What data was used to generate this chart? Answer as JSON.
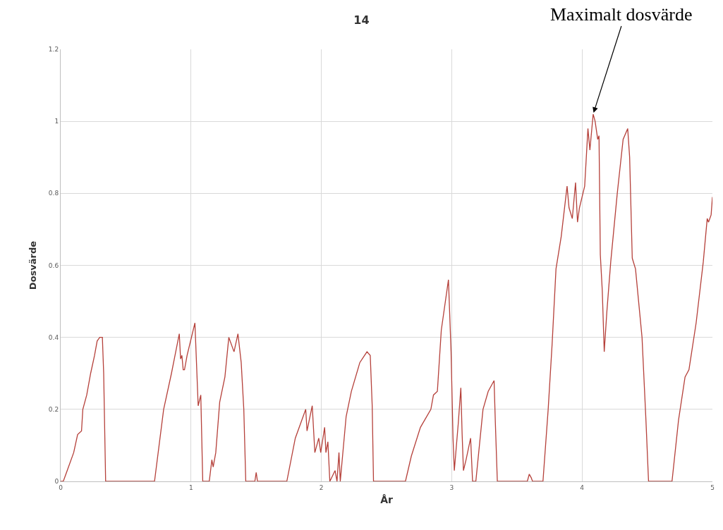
{
  "chart_data": {
    "type": "line",
    "title": "14",
    "xlabel": "År",
    "ylabel": "Dosvärde",
    "xlim": [
      0,
      5
    ],
    "xticks": [
      0,
      1,
      2,
      3,
      4,
      5
    ],
    "ylim": [
      0,
      1.2
    ],
    "yticks": [
      0,
      0.2,
      0.4,
      0.6,
      0.8,
      1,
      1.2
    ],
    "grid": true,
    "marker": "none",
    "line_style": "solid",
    "annotations": [
      {
        "text": "Maximalt dosvärde",
        "x": 4.085,
        "y": 1.02
      }
    ],
    "series": [
      {
        "color": "#b5403a",
        "x": [
          0,
          0.02,
          0.05,
          0.1,
          0.13,
          0.16,
          0.17,
          0.2,
          0.23,
          0.26,
          0.28,
          0.3,
          0.32,
          0.33,
          0.345,
          0.72,
          0.79,
          0.85,
          0.91,
          0.92,
          0.93,
          0.94,
          0.95,
          0.97,
          1.03,
          1.055,
          1.075,
          1.09,
          1.14,
          1.16,
          1.17,
          1.19,
          1.22,
          1.26,
          1.29,
          1.33,
          1.36,
          1.385,
          1.405,
          1.42,
          1.49,
          1.5,
          1.51,
          1.735,
          1.8,
          1.88,
          1.89,
          1.93,
          1.95,
          1.98,
          1.995,
          2.025,
          2.035,
          2.05,
          2.065,
          2.105,
          2.12,
          2.135,
          2.145,
          2.19,
          2.23,
          2.295,
          2.35,
          2.375,
          2.39,
          2.4,
          2.645,
          2.69,
          2.76,
          2.84,
          2.86,
          2.89,
          2.92,
          2.975,
          2.995,
          3.01,
          3.02,
          3.05,
          3.07,
          3.08,
          3.09,
          3.11,
          3.145,
          3.16,
          3.185,
          3.24,
          3.28,
          3.325,
          3.335,
          3.35,
          3.58,
          3.595,
          3.61,
          3.62,
          3.7,
          3.74,
          3.77,
          3.8,
          3.84,
          3.885,
          3.9,
          3.925,
          3.95,
          3.965,
          3.98,
          4.02,
          4.045,
          4.06,
          4.085,
          4.1,
          4.12,
          4.13,
          4.14,
          4.155,
          4.17,
          4.19,
          4.22,
          4.27,
          4.315,
          4.35,
          4.365,
          4.385,
          4.41,
          4.46,
          4.49,
          4.51,
          4.69,
          4.74,
          4.79,
          4.82,
          4.875,
          4.93,
          4.96,
          4.97,
          4.99,
          5.0
        ],
        "values": [
          0,
          0,
          0.03,
          0.08,
          0.13,
          0.14,
          0.2,
          0.24,
          0.3,
          0.35,
          0.39,
          0.4,
          0.4,
          0.3,
          0,
          0,
          0.2,
          0.3,
          0.41,
          0.34,
          0.35,
          0.31,
          0.31,
          0.35,
          0.44,
          0.21,
          0.24,
          0,
          0,
          0.06,
          0.04,
          0.08,
          0.22,
          0.29,
          0.4,
          0.36,
          0.41,
          0.33,
          0.2,
          0,
          0,
          0.025,
          0,
          0,
          0.12,
          0.2,
          0.14,
          0.21,
          0.08,
          0.12,
          0.08,
          0.15,
          0.08,
          0.11,
          0,
          0.03,
          0,
          0.08,
          0,
          0.18,
          0.25,
          0.33,
          0.36,
          0.35,
          0.21,
          0,
          0,
          0.07,
          0.15,
          0.2,
          0.24,
          0.25,
          0.42,
          0.56,
          0.36,
          0.12,
          0.03,
          0.16,
          0.26,
          0.13,
          0.03,
          0.06,
          0.12,
          0,
          0,
          0.2,
          0.25,
          0.28,
          0.16,
          0,
          0,
          0.02,
          0.01,
          0,
          0,
          0.2,
          0.38,
          0.59,
          0.68,
          0.82,
          0.76,
          0.73,
          0.83,
          0.72,
          0.76,
          0.82,
          0.98,
          0.92,
          1.02,
          1.0,
          0.95,
          0.96,
          0.63,
          0.53,
          0.36,
          0.47,
          0.61,
          0.8,
          0.95,
          0.98,
          0.9,
          0.62,
          0.59,
          0.4,
          0.17,
          0,
          0,
          0.17,
          0.29,
          0.31,
          0.44,
          0.61,
          0.73,
          0.72,
          0.74,
          0.79
        ]
      }
    ]
  }
}
